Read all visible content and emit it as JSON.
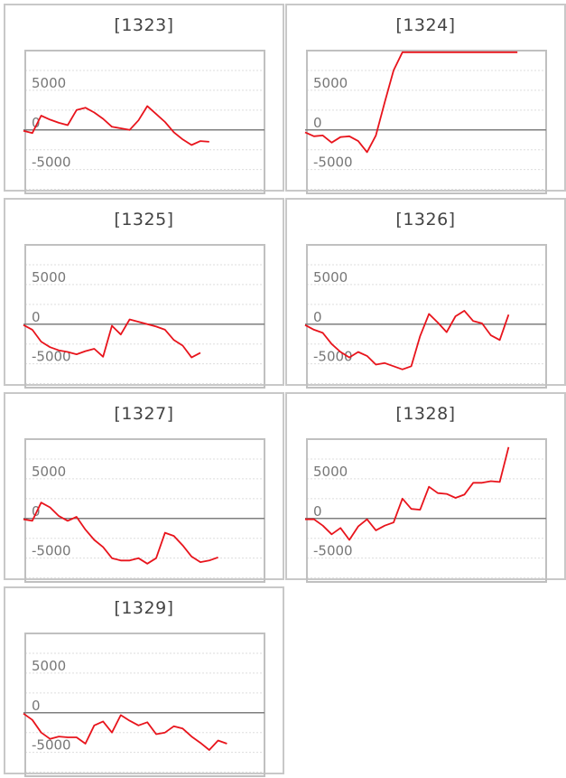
{
  "colors": {
    "line": "#e8141c",
    "zero_line": "#7f7f7f",
    "grid": "#dddddd",
    "frame": "#c0c0c0"
  },
  "chart_data": [
    {
      "type": "line",
      "title": "[1323]",
      "ylim": [
        -8000,
        10000
      ],
      "y_ticks": [
        5000,
        0,
        -5000
      ],
      "y_tick_labels": [
        "5000",
        "0",
        "-5000"
      ],
      "grid": true,
      "series": [
        {
          "values": [
            -100,
            -400,
            1800,
            1300,
            900,
            600,
            2500,
            2800,
            2200,
            1400,
            400,
            200,
            0,
            1200,
            3000,
            2000,
            1000,
            -300,
            -1200,
            -1900,
            -1400,
            -1500
          ]
        }
      ]
    },
    {
      "type": "line",
      "title": "[1324]",
      "ylim": [
        -8000,
        10000
      ],
      "y_ticks": [
        5000,
        0,
        -5000
      ],
      "y_tick_labels": [
        "5000",
        "0",
        "-5000"
      ],
      "grid": true,
      "series": [
        {
          "values": [
            -300,
            -800,
            -700,
            -1600,
            -900,
            -800,
            -1400,
            -2800,
            -700,
            3500,
            7500,
            9800,
            9800,
            9800,
            9800,
            9800,
            9800,
            9800,
            9800,
            9800,
            9800,
            9800,
            9800,
            9800,
            9800
          ]
        }
      ]
    },
    {
      "type": "line",
      "title": "[1325]",
      "ylim": [
        -8000,
        10000
      ],
      "y_ticks": [
        5000,
        0,
        -5000
      ],
      "y_tick_labels": [
        "5000",
        "0",
        "-5000"
      ],
      "grid": true,
      "series": [
        {
          "values": [
            -100,
            -700,
            -2200,
            -2900,
            -3300,
            -3500,
            -3800,
            -3400,
            -3100,
            -4100,
            -200,
            -1300,
            600,
            300,
            0,
            -300,
            -700,
            -2000,
            -2700,
            -4200,
            -3600
          ]
        }
      ]
    },
    {
      "type": "line",
      "title": "[1326]",
      "ylim": [
        -8000,
        10000
      ],
      "y_ticks": [
        5000,
        0,
        -5000
      ],
      "y_tick_labels": [
        "5000",
        "0",
        "-5000"
      ],
      "grid": true,
      "series": [
        {
          "values": [
            -100,
            -700,
            -1100,
            -2500,
            -3500,
            -4200,
            -3500,
            -4000,
            -5100,
            -4900,
            -5300,
            -5700,
            -5300,
            -1500,
            1300,
            200,
            -1000,
            1000,
            1700,
            400,
            100,
            -1400,
            -2000,
            1200
          ]
        }
      ]
    },
    {
      "type": "line",
      "title": "[1327]",
      "ylim": [
        -8000,
        10000
      ],
      "y_ticks": [
        5000,
        0,
        -5000
      ],
      "y_tick_labels": [
        "5000",
        "0",
        "-5000"
      ],
      "grid": true,
      "series": [
        {
          "values": [
            -100,
            -300,
            2000,
            1400,
            300,
            -300,
            200,
            -1400,
            -2700,
            -3600,
            -5000,
            -5300,
            -5300,
            -5000,
            -5700,
            -5000,
            -1800,
            -2200,
            -3400,
            -4800,
            -5500,
            -5300,
            -4900
          ]
        }
      ]
    },
    {
      "type": "line",
      "title": "[1328]",
      "ylim": [
        -8000,
        10000
      ],
      "y_ticks": [
        5000,
        0,
        -5000
      ],
      "y_tick_labels": [
        "5000",
        "0",
        "-5000"
      ],
      "grid": true,
      "series": [
        {
          "values": [
            -100,
            -100,
            -900,
            -2000,
            -1200,
            -2700,
            -1000,
            -100,
            -1500,
            -900,
            -500,
            2500,
            1200,
            1100,
            4000,
            3200,
            3100,
            2600,
            3000,
            4500,
            4500,
            4700,
            4600,
            9000
          ]
        }
      ]
    },
    {
      "type": "line",
      "title": "[1329]",
      "ylim": [
        -8000,
        10000
      ],
      "y_ticks": [
        5000,
        0,
        -5000
      ],
      "y_tick_labels": [
        "5000",
        "0",
        "-5000"
      ],
      "grid": true,
      "series": [
        {
          "values": [
            -100,
            -900,
            -2500,
            -3300,
            -3000,
            -3100,
            -3100,
            -3900,
            -1600,
            -1100,
            -2500,
            -300,
            -1000,
            -1600,
            -1200,
            -2700,
            -2500,
            -1700,
            -2000,
            -3000,
            -3800,
            -4700,
            -3500,
            -3900
          ]
        }
      ]
    }
  ]
}
